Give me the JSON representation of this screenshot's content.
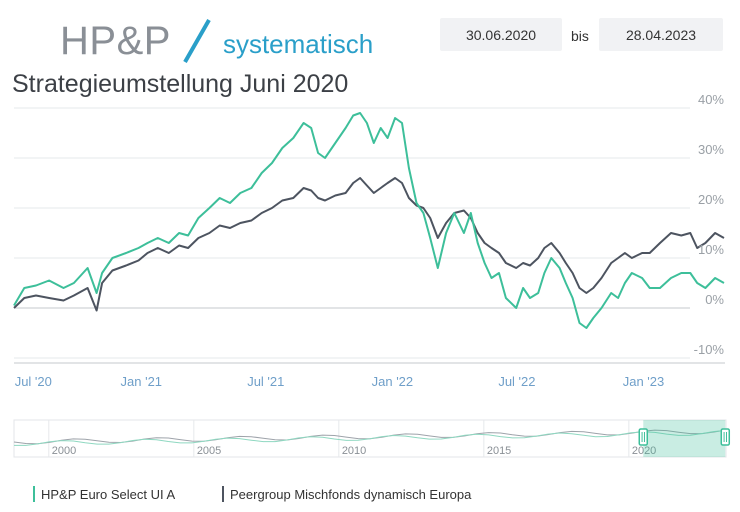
{
  "logo": {
    "brand": "HP&P",
    "sub": "systematisch",
    "brand_color": "#8a8f96",
    "accent_color": "#2a9fc9"
  },
  "title": "Strategieumstellung Juni 2020",
  "date_range": {
    "start": "30.06.2020",
    "separator": "bis",
    "end": "28.04.2023"
  },
  "chart_data": {
    "type": "line",
    "x_ticks": [
      "Jul '20",
      "Jan '21",
      "Jul '21",
      "Jan '22",
      "Jul '22",
      "Jan '23"
    ],
    "y_ticks": [
      "40%",
      "30%",
      "20%",
      "10%",
      "0%",
      "-10%"
    ],
    "y_tick_values": [
      40,
      30,
      20,
      10,
      0,
      -10
    ],
    "ylim": [
      -10,
      40
    ],
    "xlim": [
      "2020-06-30",
      "2023-04-28"
    ],
    "y_axis_position": "right",
    "grid": true,
    "series": [
      {
        "name": "HP&P Euro Select UI A",
        "color": "#3dbf9a",
        "points": [
          [
            "2020-06-30",
            0.5
          ],
          [
            "2020-07-15",
            4
          ],
          [
            "2020-08-01",
            4.5
          ],
          [
            "2020-08-20",
            5.5
          ],
          [
            "2020-09-10",
            4
          ],
          [
            "2020-09-25",
            5
          ],
          [
            "2020-10-15",
            8
          ],
          [
            "2020-10-28",
            3
          ],
          [
            "2020-11-05",
            7
          ],
          [
            "2020-11-20",
            10
          ],
          [
            "2020-12-10",
            11
          ],
          [
            "2020-12-28",
            12
          ],
          [
            "2021-01-10",
            13
          ],
          [
            "2021-01-25",
            14
          ],
          [
            "2021-02-10",
            13
          ],
          [
            "2021-02-25",
            15
          ],
          [
            "2021-03-10",
            14.5
          ],
          [
            "2021-03-25",
            18
          ],
          [
            "2021-04-10",
            20
          ],
          [
            "2021-04-25",
            22
          ],
          [
            "2021-05-10",
            21
          ],
          [
            "2021-05-25",
            23
          ],
          [
            "2021-06-10",
            24
          ],
          [
            "2021-06-25",
            27
          ],
          [
            "2021-07-10",
            29
          ],
          [
            "2021-07-25",
            32
          ],
          [
            "2021-08-10",
            34
          ],
          [
            "2021-08-25",
            37
          ],
          [
            "2021-09-05",
            36
          ],
          [
            "2021-09-15",
            31
          ],
          [
            "2021-09-25",
            30
          ],
          [
            "2021-10-10",
            33
          ],
          [
            "2021-10-25",
            36
          ],
          [
            "2021-11-05",
            38.5
          ],
          [
            "2021-11-15",
            39
          ],
          [
            "2021-11-25",
            37
          ],
          [
            "2021-12-05",
            33
          ],
          [
            "2021-12-15",
            36
          ],
          [
            "2021-12-25",
            34
          ],
          [
            "2022-01-05",
            38
          ],
          [
            "2022-01-15",
            37
          ],
          [
            "2022-01-25",
            28
          ],
          [
            "2022-02-05",
            21
          ],
          [
            "2022-02-15",
            19
          ],
          [
            "2022-02-25",
            14
          ],
          [
            "2022-03-08",
            8
          ],
          [
            "2022-03-20",
            15
          ],
          [
            "2022-04-01",
            19
          ],
          [
            "2022-04-15",
            15
          ],
          [
            "2022-04-25",
            19
          ],
          [
            "2022-05-05",
            13
          ],
          [
            "2022-05-15",
            9
          ],
          [
            "2022-05-25",
            6
          ],
          [
            "2022-06-05",
            7
          ],
          [
            "2022-06-15",
            2
          ],
          [
            "2022-06-30",
            0
          ],
          [
            "2022-07-10",
            4
          ],
          [
            "2022-07-20",
            2
          ],
          [
            "2022-08-01",
            3
          ],
          [
            "2022-08-10",
            7
          ],
          [
            "2022-08-20",
            10
          ],
          [
            "2022-09-01",
            8
          ],
          [
            "2022-09-10",
            5
          ],
          [
            "2022-09-20",
            2
          ],
          [
            "2022-09-30",
            -3
          ],
          [
            "2022-10-10",
            -4
          ],
          [
            "2022-10-20",
            -2
          ],
          [
            "2022-11-01",
            0
          ],
          [
            "2022-11-15",
            3
          ],
          [
            "2022-11-25",
            2
          ],
          [
            "2022-12-05",
            5
          ],
          [
            "2022-12-15",
            7
          ],
          [
            "2022-12-30",
            6
          ],
          [
            "2023-01-10",
            4
          ],
          [
            "2023-01-25",
            4
          ],
          [
            "2023-02-10",
            6
          ],
          [
            "2023-02-25",
            7
          ],
          [
            "2023-03-10",
            7
          ],
          [
            "2023-03-20",
            5
          ],
          [
            "2023-04-01",
            4
          ],
          [
            "2023-04-15",
            6
          ],
          [
            "2023-04-28",
            5
          ]
        ]
      },
      {
        "name": "Peergroup Mischfonds dynamisch Europa",
        "color": "#4d5460",
        "points": [
          [
            "2020-06-30",
            0
          ],
          [
            "2020-07-15",
            2
          ],
          [
            "2020-08-01",
            2.5
          ],
          [
            "2020-08-20",
            2
          ],
          [
            "2020-09-10",
            1.5
          ],
          [
            "2020-09-25",
            2.5
          ],
          [
            "2020-10-15",
            4
          ],
          [
            "2020-10-28",
            -0.5
          ],
          [
            "2020-11-05",
            5
          ],
          [
            "2020-11-20",
            7.5
          ],
          [
            "2020-12-10",
            8.5
          ],
          [
            "2020-12-28",
            9.5
          ],
          [
            "2021-01-10",
            11
          ],
          [
            "2021-01-25",
            12
          ],
          [
            "2021-02-10",
            11
          ],
          [
            "2021-02-25",
            12.5
          ],
          [
            "2021-03-10",
            12
          ],
          [
            "2021-03-25",
            14
          ],
          [
            "2021-04-10",
            15
          ],
          [
            "2021-04-25",
            16.5
          ],
          [
            "2021-05-10",
            16
          ],
          [
            "2021-05-25",
            17
          ],
          [
            "2021-06-10",
            17.5
          ],
          [
            "2021-06-25",
            19
          ],
          [
            "2021-07-10",
            20
          ],
          [
            "2021-07-25",
            21.5
          ],
          [
            "2021-08-10",
            22
          ],
          [
            "2021-08-25",
            24
          ],
          [
            "2021-09-05",
            23.5
          ],
          [
            "2021-09-15",
            22
          ],
          [
            "2021-09-25",
            21.5
          ],
          [
            "2021-10-10",
            22.5
          ],
          [
            "2021-10-25",
            23
          ],
          [
            "2021-11-05",
            25
          ],
          [
            "2021-11-15",
            26
          ],
          [
            "2021-11-25",
            24.5
          ],
          [
            "2021-12-05",
            23
          ],
          [
            "2021-12-15",
            24
          ],
          [
            "2021-12-25",
            25
          ],
          [
            "2022-01-05",
            26
          ],
          [
            "2022-01-15",
            25
          ],
          [
            "2022-01-25",
            22
          ],
          [
            "2022-02-05",
            20.5
          ],
          [
            "2022-02-15",
            20
          ],
          [
            "2022-02-25",
            18
          ],
          [
            "2022-03-08",
            14
          ],
          [
            "2022-03-20",
            17
          ],
          [
            "2022-04-01",
            19
          ],
          [
            "2022-04-15",
            19.5
          ],
          [
            "2022-04-25",
            18
          ],
          [
            "2022-05-05",
            15
          ],
          [
            "2022-05-15",
            13
          ],
          [
            "2022-05-25",
            12
          ],
          [
            "2022-06-05",
            11
          ],
          [
            "2022-06-15",
            9
          ],
          [
            "2022-06-30",
            8
          ],
          [
            "2022-07-10",
            9
          ],
          [
            "2022-07-20",
            8.5
          ],
          [
            "2022-08-01",
            10
          ],
          [
            "2022-08-10",
            12
          ],
          [
            "2022-08-20",
            13
          ],
          [
            "2022-09-01",
            11
          ],
          [
            "2022-09-10",
            9
          ],
          [
            "2022-09-20",
            7
          ],
          [
            "2022-09-30",
            4
          ],
          [
            "2022-10-10",
            3
          ],
          [
            "2022-10-20",
            4
          ],
          [
            "2022-11-01",
            6
          ],
          [
            "2022-11-15",
            9
          ],
          [
            "2022-11-25",
            10
          ],
          [
            "2022-12-05",
            11
          ],
          [
            "2022-12-15",
            10
          ],
          [
            "2022-12-30",
            11
          ],
          [
            "2023-01-10",
            11
          ],
          [
            "2023-01-25",
            13
          ],
          [
            "2023-02-10",
            15
          ],
          [
            "2023-02-25",
            14.5
          ],
          [
            "2023-03-10",
            15
          ],
          [
            "2023-03-20",
            12
          ],
          [
            "2023-04-01",
            13
          ],
          [
            "2023-04-15",
            15
          ],
          [
            "2023-04-28",
            14
          ]
        ]
      }
    ]
  },
  "navigator": {
    "x_ticks": [
      "2000",
      "2005",
      "2010",
      "2015",
      "2020"
    ],
    "x_tick_years": [
      2000,
      2005,
      2010,
      2015,
      2020
    ],
    "xlim": [
      1998.8,
      2023.35
    ],
    "selection": [
      "2020-06-30",
      "2023-04-28"
    ],
    "selection_color": "#3dbf9a"
  },
  "legend": [
    {
      "label": "HP&P Euro Select UI A",
      "color": "#3dbf9a"
    },
    {
      "label": "Peergroup Mischfonds dynamisch Europa",
      "color": "#4d5460"
    }
  ]
}
